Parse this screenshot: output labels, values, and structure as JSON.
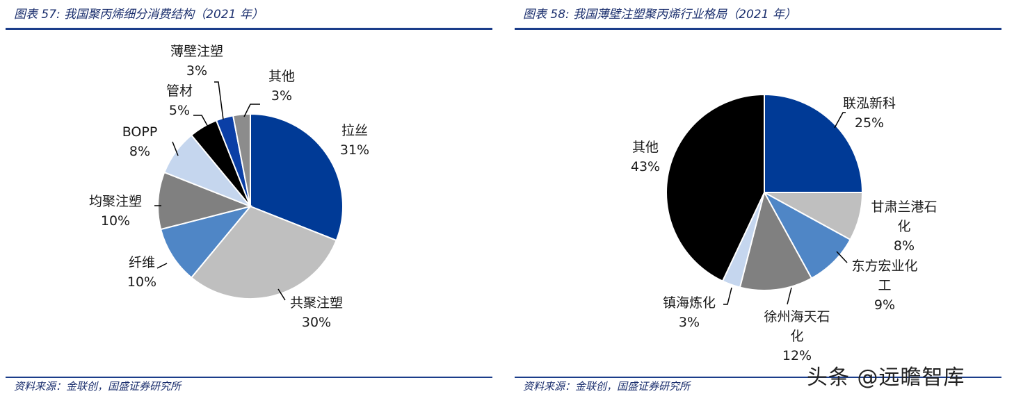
{
  "chart_data": [
    {
      "type": "pie",
      "title": "图表 57: 我国聚丙烯细分消费结构（2021 年）",
      "source": "资料来源：金联创，国盛证券研究所",
      "slices": [
        {
          "label": "拉丝",
          "value": 31,
          "pct_label": "31%",
          "color": "#003a96"
        },
        {
          "label": "共聚注塑",
          "value": 30,
          "pct_label": "30%",
          "color": "#bfbfbf"
        },
        {
          "label": "纤维",
          "value": 10,
          "pct_label": "10%",
          "color": "#4f86c6"
        },
        {
          "label": "均聚注塑",
          "value": 10,
          "pct_label": "10%",
          "color": "#808080"
        },
        {
          "label": "BOPP",
          "value": 8,
          "pct_label": "8%",
          "color": "#c5d6ee"
        },
        {
          "label": "管材",
          "value": 5,
          "pct_label": "5%",
          "color": "#000000"
        },
        {
          "label": "薄壁注塑",
          "value": 3,
          "pct_label": "3%",
          "color": "#0b3fa6"
        },
        {
          "label": "其他",
          "value": 3,
          "pct_label": "3%",
          "color": "#8c8c8c"
        }
      ]
    },
    {
      "type": "pie",
      "title": "图表 58: 我国薄壁注塑聚丙烯行业格局（2021 年）",
      "source": "资料来源：金联创，国盛证券研究所",
      "slices": [
        {
          "label": "联泓新科",
          "value": 25,
          "pct_label": "25%",
          "color": "#003a96"
        },
        {
          "label": "甘肃兰港石化",
          "value": 8,
          "pct_label": "8%",
          "color": "#bfbfbf"
        },
        {
          "label": "东方宏业化工",
          "value": 9,
          "pct_label": "9%",
          "color": "#4f86c6"
        },
        {
          "label": "徐州海天石化",
          "value": 12,
          "pct_label": "12%",
          "color": "#808080"
        },
        {
          "label": "镇海炼化",
          "value": 3,
          "pct_label": "3%",
          "color": "#c5d6ee"
        },
        {
          "label": "其他",
          "value": 43,
          "pct_label": "43%",
          "color": "#000000"
        }
      ]
    }
  ],
  "watermark": "头条 @远瞻智库"
}
